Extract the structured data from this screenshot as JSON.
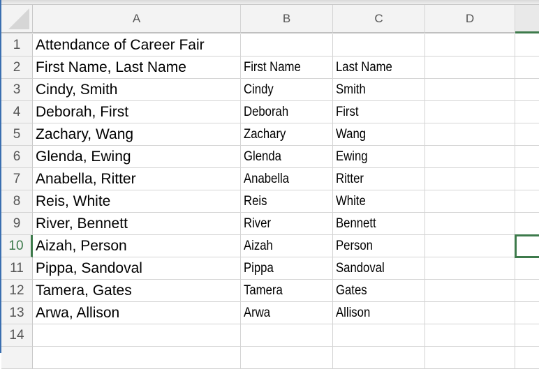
{
  "columns": [
    "A",
    "B",
    "C",
    "D",
    ""
  ],
  "selected_cell": "E10",
  "accent_color": "#3d7a4b",
  "rows": [
    {
      "num": "1",
      "a": "Attendance of Career Fair",
      "b": "",
      "c": ""
    },
    {
      "num": "2",
      "a": "First Name, Last Name",
      "b": "First Name",
      "c": "Last Name"
    },
    {
      "num": "3",
      "a": "Cindy, Smith",
      "b": "Cindy",
      "c": "Smith"
    },
    {
      "num": "4",
      "a": "Deborah, First",
      "b": "Deborah",
      "c": "First"
    },
    {
      "num": "5",
      "a": "Zachary, Wang",
      "b": "Zachary",
      "c": "Wang"
    },
    {
      "num": "6",
      "a": "Glenda, Ewing",
      "b": "Glenda",
      "c": "Ewing"
    },
    {
      "num": "7",
      "a": "Anabella, Ritter",
      "b": "Anabella",
      "c": "Ritter"
    },
    {
      "num": "8",
      "a": "Reis, White",
      "b": "Reis",
      "c": "White"
    },
    {
      "num": "9",
      "a": "River, Bennett",
      "b": "River",
      "c": "Bennett"
    },
    {
      "num": "10",
      "a": "Aizah, Person",
      "b": "Aizah",
      "c": "Person"
    },
    {
      "num": "11",
      "a": "Pippa, Sandoval",
      "b": "Pippa",
      "c": "Sandoval"
    },
    {
      "num": "12",
      "a": "Tamera, Gates",
      "b": "Tamera",
      "c": "Gates"
    },
    {
      "num": "13",
      "a": "Arwa, Allison",
      "b": "Arwa",
      "c": "Allison"
    },
    {
      "num": "14",
      "a": "",
      "b": "",
      "c": ""
    },
    {
      "num": "",
      "a": "",
      "b": "",
      "c": ""
    }
  ]
}
